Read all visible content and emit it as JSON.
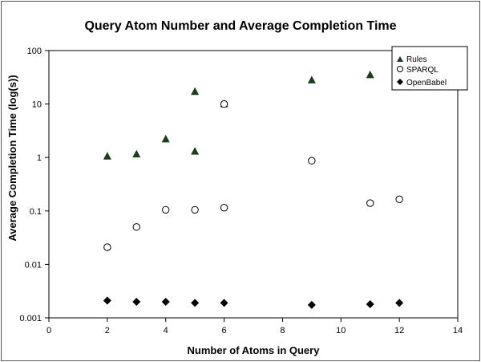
{
  "chart_data": {
    "type": "scatter",
    "title": "Query Atom Number and Average Completion Time",
    "xlabel": "Number of Atoms in Query",
    "ylabel": "Average Completion Time (log(s))",
    "xlim": [
      0,
      14
    ],
    "ylim": [
      0.001,
      100
    ],
    "yscale": "log",
    "x_ticks": [
      "0",
      "2",
      "4",
      "6",
      "8",
      "10",
      "12",
      "14"
    ],
    "y_ticks": [
      "0.001",
      "0.01",
      "0.1",
      "1",
      "10",
      "100"
    ],
    "grid": false,
    "legend_position": "top-right",
    "series": [
      {
        "name": "Rules",
        "marker": "triangle",
        "color": "#1a3d1a",
        "points": [
          [
            2,
            1.05
          ],
          [
            3,
            1.15
          ],
          [
            4,
            2.2
          ],
          [
            5,
            1.3
          ],
          [
            5,
            17
          ],
          [
            6,
            10
          ],
          [
            9,
            28
          ],
          [
            11,
            35
          ]
        ]
      },
      {
        "name": "SPARQL",
        "marker": "circle-open",
        "color": "#000000",
        "points": [
          [
            2,
            0.021
          ],
          [
            3,
            0.05
          ],
          [
            4,
            0.105
          ],
          [
            5,
            0.105
          ],
          [
            6,
            0.115
          ],
          [
            6,
            10
          ],
          [
            9,
            0.87
          ],
          [
            11,
            0.14
          ],
          [
            12,
            0.165
          ]
        ]
      },
      {
        "name": "OpenBabel",
        "marker": "diamond",
        "color": "#000000",
        "points": [
          [
            2,
            0.0021
          ],
          [
            3,
            0.002
          ],
          [
            4,
            0.002
          ],
          [
            5,
            0.0019
          ],
          [
            6,
            0.0019
          ],
          [
            9,
            0.00175
          ],
          [
            11,
            0.0018
          ],
          [
            12,
            0.0019
          ]
        ]
      }
    ]
  }
}
